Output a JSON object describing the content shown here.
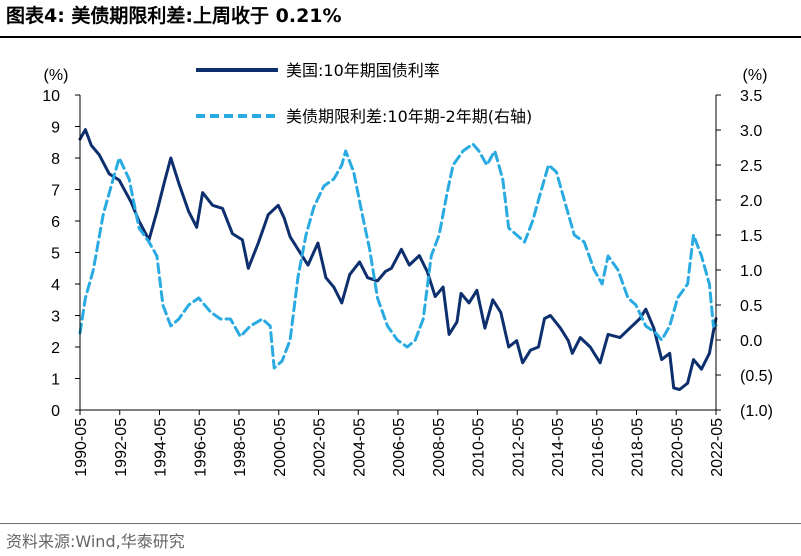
{
  "title": "图表4:  美债期限利差:上周收于 0.21%",
  "source": "资料来源:Wind,华泰研究",
  "chart_data": {
    "type": "line",
    "left_axis": {
      "unit_label": "(%)",
      "range": [
        0,
        10
      ],
      "ticks": [
        "0",
        "1",
        "2",
        "3",
        "4",
        "5",
        "6",
        "7",
        "8",
        "9",
        "10"
      ]
    },
    "right_axis": {
      "unit_label": "(%)",
      "range": [
        -1.0,
        3.5
      ],
      "ticks": [
        "(1.0)",
        "(0.5)",
        "0.0",
        "0.5",
        "1.0",
        "1.5",
        "2.0",
        "2.5",
        "3.0",
        "3.5"
      ]
    },
    "x_ticks": [
      "1990-05",
      "1992-05",
      "1994-05",
      "1996-05",
      "1998-05",
      "2000-05",
      "2002-05",
      "2004-05",
      "2006-05",
      "2008-05",
      "2010-05",
      "2012-05",
      "2014-05",
      "2016-05",
      "2018-05",
      "2020-05",
      "2022-05"
    ],
    "x_range": [
      1990.33,
      2022.33
    ],
    "series": [
      {
        "name": "美国:10年期国债利率",
        "axis": "left",
        "color": "#0d2f6e",
        "dash": "solid",
        "points": [
          [
            1990.33,
            8.6
          ],
          [
            1990.6,
            8.9
          ],
          [
            1990.9,
            8.4
          ],
          [
            1991.3,
            8.1
          ],
          [
            1991.8,
            7.5
          ],
          [
            1992.3,
            7.3
          ],
          [
            1992.9,
            6.6
          ],
          [
            1993.3,
            6.0
          ],
          [
            1993.8,
            5.4
          ],
          [
            1994.2,
            6.3
          ],
          [
            1994.6,
            7.3
          ],
          [
            1994.9,
            8.0
          ],
          [
            1995.3,
            7.2
          ],
          [
            1995.8,
            6.3
          ],
          [
            1996.2,
            5.8
          ],
          [
            1996.5,
            6.9
          ],
          [
            1997.0,
            6.5
          ],
          [
            1997.5,
            6.4
          ],
          [
            1998.0,
            5.6
          ],
          [
            1998.5,
            5.4
          ],
          [
            1998.8,
            4.5
          ],
          [
            1999.3,
            5.3
          ],
          [
            1999.8,
            6.2
          ],
          [
            2000.3,
            6.5
          ],
          [
            2000.6,
            6.1
          ],
          [
            2000.9,
            5.5
          ],
          [
            2001.3,
            5.1
          ],
          [
            2001.8,
            4.6
          ],
          [
            2002.3,
            5.3
          ],
          [
            2002.7,
            4.2
          ],
          [
            2003.1,
            3.9
          ],
          [
            2003.5,
            3.4
          ],
          [
            2003.9,
            4.3
          ],
          [
            2004.4,
            4.7
          ],
          [
            2004.8,
            4.2
          ],
          [
            2005.3,
            4.1
          ],
          [
            2005.7,
            4.4
          ],
          [
            2006.0,
            4.5
          ],
          [
            2006.5,
            5.1
          ],
          [
            2006.9,
            4.6
          ],
          [
            2007.4,
            4.9
          ],
          [
            2007.8,
            4.4
          ],
          [
            2008.2,
            3.6
          ],
          [
            2008.6,
            3.9
          ],
          [
            2008.9,
            2.4
          ],
          [
            2009.3,
            2.8
          ],
          [
            2009.5,
            3.7
          ],
          [
            2009.9,
            3.4
          ],
          [
            2010.3,
            3.8
          ],
          [
            2010.7,
            2.6
          ],
          [
            2011.1,
            3.5
          ],
          [
            2011.5,
            3.1
          ],
          [
            2011.9,
            2.0
          ],
          [
            2012.3,
            2.2
          ],
          [
            2012.6,
            1.5
          ],
          [
            2013.0,
            1.9
          ],
          [
            2013.4,
            2.0
          ],
          [
            2013.7,
            2.9
          ],
          [
            2014.0,
            3.0
          ],
          [
            2014.5,
            2.6
          ],
          [
            2014.9,
            2.2
          ],
          [
            2015.1,
            1.8
          ],
          [
            2015.5,
            2.3
          ],
          [
            2016.0,
            2.0
          ],
          [
            2016.5,
            1.5
          ],
          [
            2016.9,
            2.4
          ],
          [
            2017.5,
            2.3
          ],
          [
            2018.0,
            2.6
          ],
          [
            2018.5,
            2.9
          ],
          [
            2018.8,
            3.2
          ],
          [
            2019.2,
            2.6
          ],
          [
            2019.6,
            1.6
          ],
          [
            2020.0,
            1.8
          ],
          [
            2020.2,
            0.7
          ],
          [
            2020.5,
            0.65
          ],
          [
            2020.9,
            0.85
          ],
          [
            2021.2,
            1.6
          ],
          [
            2021.6,
            1.3
          ],
          [
            2022.0,
            1.8
          ],
          [
            2022.2,
            2.5
          ],
          [
            2022.33,
            2.9
          ]
        ]
      },
      {
        "name": "美债期限利差:10年期-2年期(右轴)",
        "axis": "right",
        "color": "#29abe2",
        "dash": "dashed",
        "points": [
          [
            1990.33,
            0.1
          ],
          [
            1990.6,
            0.6
          ],
          [
            1991.0,
            1.0
          ],
          [
            1991.5,
            1.8
          ],
          [
            1992.0,
            2.3
          ],
          [
            1992.3,
            2.6
          ],
          [
            1992.8,
            2.3
          ],
          [
            1993.3,
            1.6
          ],
          [
            1993.8,
            1.4
          ],
          [
            1994.2,
            1.2
          ],
          [
            1994.5,
            0.5
          ],
          [
            1994.9,
            0.2
          ],
          [
            1995.3,
            0.3
          ],
          [
            1995.8,
            0.5
          ],
          [
            1996.3,
            0.6
          ],
          [
            1996.9,
            0.4
          ],
          [
            1997.4,
            0.3
          ],
          [
            1997.9,
            0.3
          ],
          [
            1998.4,
            0.05
          ],
          [
            1998.9,
            0.2
          ],
          [
            1999.5,
            0.3
          ],
          [
            1999.9,
            0.2
          ],
          [
            2000.1,
            -0.4
          ],
          [
            2000.5,
            -0.3
          ],
          [
            2000.9,
            0.0
          ],
          [
            2001.3,
            0.9
          ],
          [
            2001.7,
            1.5
          ],
          [
            2002.1,
            1.9
          ],
          [
            2002.6,
            2.2
          ],
          [
            2003.1,
            2.3
          ],
          [
            2003.5,
            2.5
          ],
          [
            2003.7,
            2.7
          ],
          [
            2004.1,
            2.4
          ],
          [
            2004.6,
            1.7
          ],
          [
            2004.9,
            1.3
          ],
          [
            2005.3,
            0.6
          ],
          [
            2005.8,
            0.2
          ],
          [
            2006.3,
            0.0
          ],
          [
            2006.8,
            -0.1
          ],
          [
            2007.2,
            0.0
          ],
          [
            2007.6,
            0.3
          ],
          [
            2008.0,
            1.2
          ],
          [
            2008.4,
            1.5
          ],
          [
            2008.8,
            2.1
          ],
          [
            2009.1,
            2.5
          ],
          [
            2009.6,
            2.7
          ],
          [
            2010.1,
            2.8
          ],
          [
            2010.4,
            2.7
          ],
          [
            2010.8,
            2.5
          ],
          [
            2011.2,
            2.7
          ],
          [
            2011.6,
            2.3
          ],
          [
            2011.9,
            1.6
          ],
          [
            2012.3,
            1.5
          ],
          [
            2012.7,
            1.4
          ],
          [
            2013.1,
            1.7
          ],
          [
            2013.5,
            2.1
          ],
          [
            2013.9,
            2.5
          ],
          [
            2014.3,
            2.4
          ],
          [
            2014.8,
            1.9
          ],
          [
            2015.2,
            1.5
          ],
          [
            2015.7,
            1.4
          ],
          [
            2016.2,
            1.0
          ],
          [
            2016.6,
            0.8
          ],
          [
            2016.9,
            1.2
          ],
          [
            2017.4,
            1.0
          ],
          [
            2017.9,
            0.6
          ],
          [
            2018.3,
            0.5
          ],
          [
            2018.8,
            0.2
          ],
          [
            2019.3,
            0.1
          ],
          [
            2019.6,
            0.0
          ],
          [
            2020.0,
            0.2
          ],
          [
            2020.4,
            0.6
          ],
          [
            2020.9,
            0.8
          ],
          [
            2021.2,
            1.5
          ],
          [
            2021.6,
            1.2
          ],
          [
            2022.0,
            0.8
          ],
          [
            2022.2,
            0.2
          ],
          [
            2022.33,
            0.21
          ]
        ]
      }
    ]
  }
}
